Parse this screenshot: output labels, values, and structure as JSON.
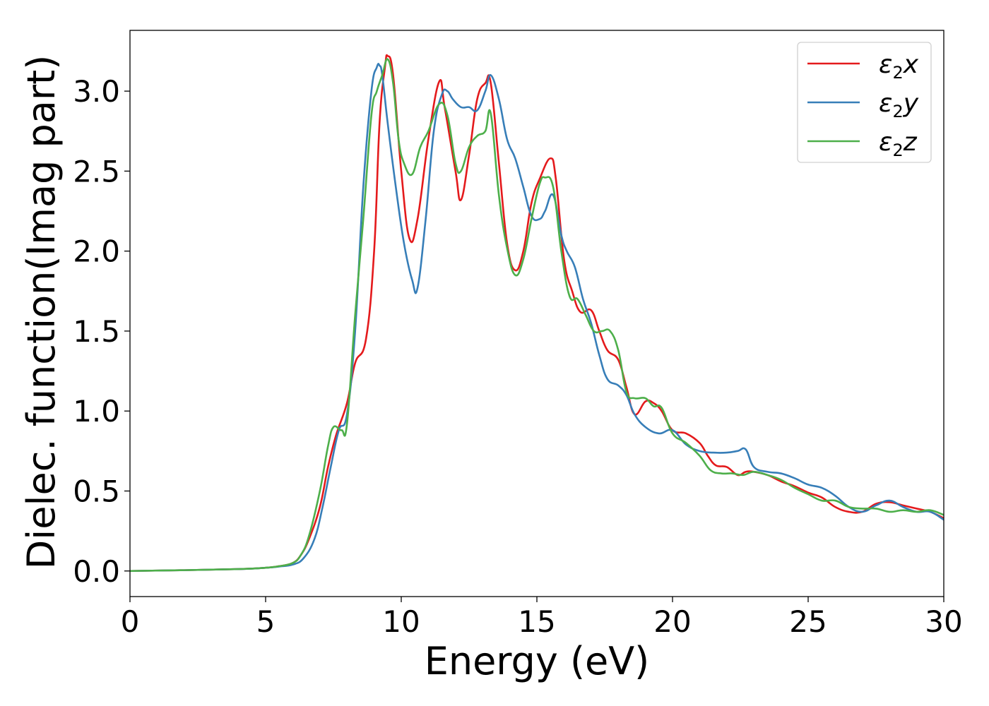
{
  "chart_data": {
    "type": "line",
    "title": "",
    "xlabel": "Energy (eV)",
    "ylabel": "Dielec. function(Imag part)",
    "xlim": [
      0,
      30
    ],
    "ylim": [
      -0.16,
      3.38
    ],
    "xticks": [
      0,
      5,
      10,
      15,
      20,
      25,
      30
    ],
    "xtick_labels": [
      "0",
      "5",
      "10",
      "15",
      "20",
      "25",
      "30"
    ],
    "yticks": [
      0.0,
      0.5,
      1.0,
      1.5,
      2.0,
      2.5,
      3.0
    ],
    "ytick_labels": [
      "0.0",
      "0.5",
      "1.0",
      "1.5",
      "2.0",
      "2.5",
      "3.0"
    ],
    "grid": false,
    "legend_position": "top-right",
    "series": [
      {
        "name": "ε₂x",
        "label_main": "ε",
        "label_sub": "2",
        "label_tail": "x",
        "color": "#e41a1c",
        "x": [
          0,
          2,
          4,
          5,
          5.5,
          6,
          6.3,
          6.6,
          7,
          7.3,
          7.6,
          8,
          8.3,
          8.7,
          9,
          9.2,
          9.4,
          9.5,
          9.7,
          10,
          10.3,
          10.6,
          11,
          11.4,
          11.6,
          12,
          12.2,
          12.5,
          12.8,
          13.1,
          13.3,
          13.6,
          13.9,
          14.2,
          14.5,
          14.8,
          15.1,
          15.5,
          15.7,
          16,
          16.3,
          16.6,
          17,
          17.3,
          17.6,
          18,
          18.3,
          18.6,
          19,
          19.3,
          19.6,
          20,
          20.5,
          21,
          21.3,
          21.6,
          22,
          22.4,
          22.7,
          23,
          23.5,
          24,
          24.5,
          25,
          25.5,
          26,
          26.5,
          27,
          27.5,
          28,
          28.5,
          29,
          29.5,
          30
        ],
        "values": [
          0.0,
          0.005,
          0.012,
          0.02,
          0.03,
          0.05,
          0.1,
          0.2,
          0.4,
          0.65,
          0.85,
          1.05,
          1.3,
          1.45,
          2.0,
          2.8,
          3.15,
          3.22,
          3.1,
          2.5,
          2.08,
          2.2,
          2.7,
          3.06,
          2.9,
          2.5,
          2.32,
          2.6,
          2.95,
          3.05,
          3.05,
          2.55,
          2.05,
          1.88,
          2.0,
          2.3,
          2.45,
          2.58,
          2.45,
          1.95,
          1.75,
          1.62,
          1.63,
          1.5,
          1.38,
          1.32,
          1.15,
          0.98,
          1.06,
          1.05,
          1.0,
          0.88,
          0.86,
          0.8,
          0.72,
          0.66,
          0.65,
          0.6,
          0.62,
          0.62,
          0.6,
          0.56,
          0.53,
          0.49,
          0.46,
          0.4,
          0.37,
          0.37,
          0.42,
          0.43,
          0.41,
          0.39,
          0.37,
          0.33
        ]
      },
      {
        "name": "ε₂y",
        "label_main": "ε",
        "label_sub": "2",
        "label_tail": "y",
        "color": "#377eb8",
        "x": [
          0,
          2,
          4,
          5,
          5.5,
          6,
          6.4,
          6.8,
          7.1,
          7.4,
          7.7,
          8,
          8.3,
          8.6,
          8.9,
          9.1,
          9.2,
          9.3,
          9.5,
          9.8,
          10.1,
          10.4,
          10.6,
          10.9,
          11.2,
          11.5,
          11.7,
          11.9,
          12.2,
          12.5,
          12.8,
          13.1,
          13.3,
          13.6,
          13.9,
          14.2,
          14.5,
          14.8,
          15.1,
          15.3,
          15.6,
          15.9,
          16.1,
          16.4,
          16.7,
          17,
          17.3,
          17.6,
          18,
          18.3,
          18.6,
          19,
          19.5,
          20,
          20.5,
          21,
          21.5,
          22,
          22.4,
          22.7,
          23,
          23.5,
          24,
          24.5,
          25,
          25.5,
          26,
          26.5,
          27,
          27.5,
          28,
          28.5,
          29,
          29.5,
          30
        ],
        "values": [
          0.0,
          0.005,
          0.012,
          0.02,
          0.028,
          0.04,
          0.08,
          0.2,
          0.4,
          0.65,
          0.88,
          0.98,
          1.5,
          2.4,
          3.0,
          3.15,
          3.16,
          3.1,
          2.8,
          2.4,
          2.05,
          1.82,
          1.77,
          2.2,
          2.75,
          2.98,
          3.0,
          2.95,
          2.9,
          2.9,
          2.88,
          3.0,
          3.1,
          2.95,
          2.7,
          2.58,
          2.4,
          2.22,
          2.2,
          2.25,
          2.35,
          2.1,
          2.0,
          1.9,
          1.7,
          1.55,
          1.35,
          1.2,
          1.16,
          1.1,
          0.98,
          0.9,
          0.86,
          0.88,
          0.79,
          0.75,
          0.74,
          0.74,
          0.75,
          0.76,
          0.65,
          0.62,
          0.61,
          0.58,
          0.54,
          0.52,
          0.47,
          0.4,
          0.37,
          0.41,
          0.44,
          0.4,
          0.37,
          0.37,
          0.32
        ]
      },
      {
        "name": "ε₂z",
        "label_main": "ε",
        "label_sub": "2",
        "label_tail": "z",
        "color": "#4daf4a",
        "x": [
          0,
          2,
          4,
          5,
          5.5,
          6,
          6.3,
          6.6,
          7,
          7.3,
          7.5,
          7.8,
          8,
          8.3,
          8.6,
          8.9,
          9.1,
          9.3,
          9.5,
          9.7,
          9.9,
          10.1,
          10.4,
          10.7,
          11,
          11.4,
          11.7,
          12,
          12.2,
          12.5,
          12.8,
          13.1,
          13.3,
          13.6,
          13.9,
          14.2,
          14.5,
          14.8,
          15.1,
          15.3,
          15.6,
          15.9,
          16.2,
          16.5,
          16.8,
          17.1,
          17.4,
          17.7,
          18,
          18.3,
          18.6,
          19,
          19.3,
          19.6,
          20,
          20.5,
          21,
          21.4,
          21.8,
          22.2,
          22.6,
          23,
          23.5,
          24,
          24.5,
          25,
          25.5,
          26,
          26.5,
          27,
          27.5,
          28,
          28.5,
          29,
          29.5,
          30
        ],
        "values": [
          0.0,
          0.005,
          0.012,
          0.02,
          0.03,
          0.05,
          0.1,
          0.22,
          0.5,
          0.78,
          0.9,
          0.88,
          0.92,
          1.6,
          2.2,
          2.85,
          3.0,
          3.1,
          3.2,
          3.05,
          2.7,
          2.55,
          2.48,
          2.65,
          2.75,
          2.92,
          2.85,
          2.55,
          2.5,
          2.65,
          2.72,
          2.75,
          2.86,
          2.35,
          2.02,
          1.85,
          1.95,
          2.2,
          2.42,
          2.46,
          2.4,
          2.0,
          1.72,
          1.7,
          1.6,
          1.5,
          1.5,
          1.5,
          1.38,
          1.12,
          1.08,
          1.08,
          1.03,
          1.02,
          0.86,
          0.8,
          0.72,
          0.63,
          0.61,
          0.61,
          0.6,
          0.62,
          0.6,
          0.57,
          0.52,
          0.48,
          0.44,
          0.44,
          0.4,
          0.39,
          0.39,
          0.37,
          0.38,
          0.37,
          0.38,
          0.35
        ]
      }
    ]
  }
}
